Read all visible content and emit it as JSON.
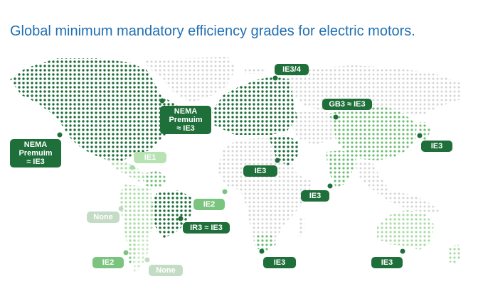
{
  "title": "Global minimum mandatory efficiency grades for electric motors.",
  "colors": {
    "title": "#1f6fb2",
    "dark": "#1e6f3a",
    "mid": "#7bc47f",
    "light": "#b7e3b2",
    "pale": "#c4dcc6",
    "dot_gray": "#d4d4d4"
  },
  "labels": {
    "usa": [
      "NEMA",
      "Premuim",
      "≈ IE3"
    ],
    "canada": [
      "NEMA",
      "Premuim",
      "≈ IE3"
    ],
    "europe": "IE3/4",
    "china": "GB3 ≈ IE3",
    "japan": "IE3",
    "middle_east": "IE3",
    "india": "IE3",
    "mexico": "IE1",
    "colombia": "IE2",
    "central_america": "None",
    "brazil": "IR3 ≈ IE3",
    "chile": "IE2",
    "argentina": "None",
    "south_africa": "IE3",
    "australia": "IE3"
  }
}
